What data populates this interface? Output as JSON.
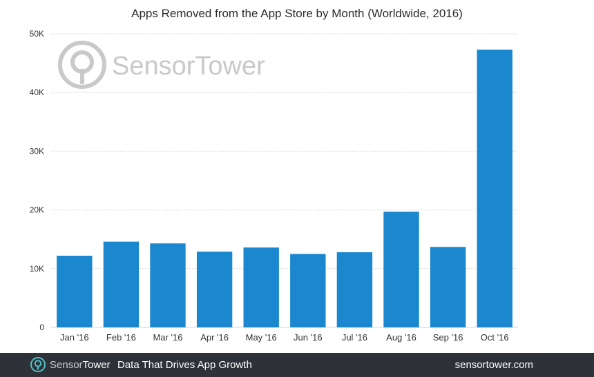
{
  "colors": {
    "bar": "#1a87ce",
    "grid": "#d5d5d5",
    "axis_text": "#333333",
    "footer_bg": "#2e3238",
    "watermark": "#c9c9c9"
  },
  "watermark": {
    "icon": "sensortower-logo-icon",
    "text": "SensorTower"
  },
  "footer": {
    "logo_icon": "sensortower-logo-icon",
    "brand_sensor": "Sensor",
    "brand_tower": "Tower",
    "tagline": "Data That Drives App Growth",
    "url": "sensortower.com"
  },
  "chart_data": {
    "type": "bar",
    "title": "Apps Removed from the App Store by Month (Worldwide, 2016)",
    "xlabel": "",
    "ylabel": "",
    "ylim": [
      0,
      50000
    ],
    "yticks": [
      0,
      10000,
      20000,
      30000,
      40000,
      50000
    ],
    "ytick_labels": [
      "0",
      "10K",
      "20K",
      "30K",
      "40K",
      "50K"
    ],
    "grid": true,
    "categories": [
      "Jan '16",
      "Feb '16",
      "Mar '16",
      "Apr '16",
      "May '16",
      "Jun '16",
      "Jul '16",
      "Aug '16",
      "Sep '16",
      "Oct '16"
    ],
    "values": [
      12200,
      14600,
      14300,
      12900,
      13600,
      12500,
      12800,
      19700,
      13700,
      47300
    ]
  }
}
